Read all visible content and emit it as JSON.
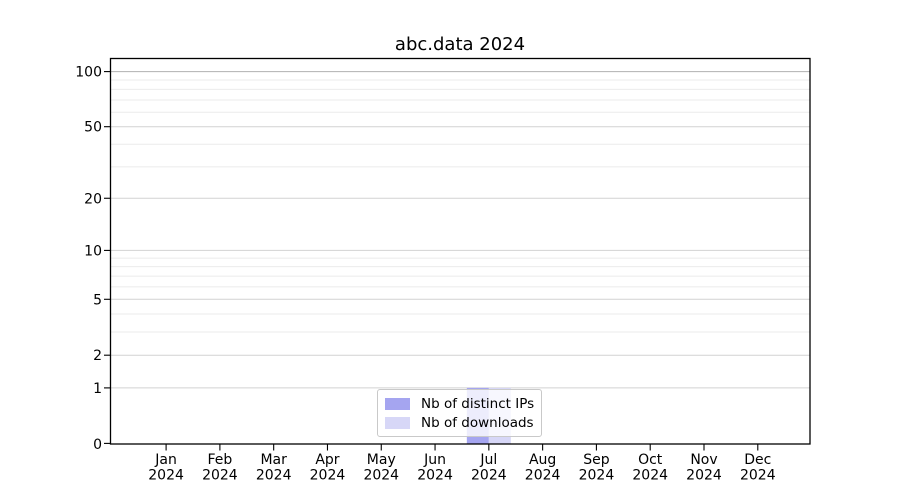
{
  "title": "abc.data 2024",
  "chart_data": {
    "type": "bar",
    "title": "abc.data 2024",
    "xlabel": "",
    "ylabel": "",
    "year_label": "2024",
    "categories": [
      "Jan",
      "Feb",
      "Mar",
      "Apr",
      "May",
      "Jun",
      "Jul",
      "Aug",
      "Sep",
      "Oct",
      "Nov",
      "Dec"
    ],
    "series": [
      {
        "name": "Nb of distinct IPs",
        "color": "#a5a5f0",
        "values": [
          0,
          0,
          0,
          0,
          0,
          0,
          1,
          0,
          0,
          0,
          0,
          0
        ]
      },
      {
        "name": "Nb of downloads",
        "color": "#d7d7f7",
        "values": [
          0,
          0,
          0,
          0,
          0,
          0,
          1,
          0,
          0,
          0,
          0,
          0
        ]
      }
    ],
    "y_axis": {
      "scale": "log1p",
      "tick_values": [
        0,
        1,
        2,
        5,
        10,
        20,
        50,
        100
      ],
      "minor_gridlines": [
        3,
        4,
        6,
        7,
        8,
        9,
        30,
        40,
        60,
        70,
        80,
        90
      ],
      "ylim": [
        0,
        118
      ]
    },
    "legend": {
      "position": "lower-center"
    },
    "grid": true
  },
  "colors": {
    "bar_distinct_ips": "#a5a5f0",
    "bar_downloads": "#d7d7f7",
    "gridline_major": "#d2d2d2",
    "gridline_top": "#b0b0b0",
    "gridline_minor": "#ebebeb",
    "axis": "#000000",
    "text": "#000000"
  }
}
